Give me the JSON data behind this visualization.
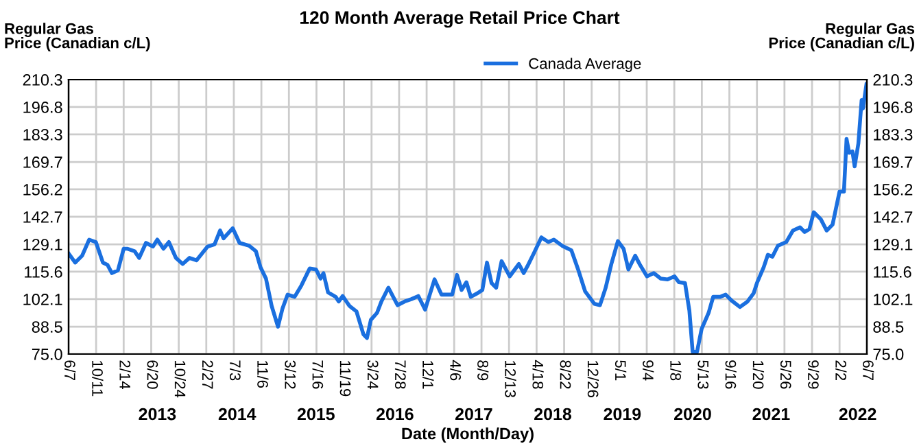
{
  "chart_data": {
    "type": "line",
    "title": "120 Month Average Retail Price Chart",
    "xlabel": "Date (Month/Day)",
    "ylabel": "Regular Gas\nPrice (Canadian c/L)",
    "y2label": "Regular Gas\nPrice (Canadian c/L)",
    "legend": "top",
    "grid": true,
    "xlim": [
      "2012-06-07",
      "2022-06-07"
    ],
    "xticks": [
      {
        "value": "2012-06-07",
        "label": "6/7"
      },
      {
        "value": "2012-10-11",
        "label": "10/11"
      },
      {
        "value": "2013-02-14",
        "label": "2/14"
      },
      {
        "value": "2013-06-20",
        "label": "6/20"
      },
      {
        "value": "2013-10-24",
        "label": "10/24"
      },
      {
        "value": "2014-02-27",
        "label": "2/27"
      },
      {
        "value": "2014-07-03",
        "label": "7/3"
      },
      {
        "value": "2014-11-06",
        "label": "11/6"
      },
      {
        "value": "2015-03-12",
        "label": "3/12"
      },
      {
        "value": "2015-07-16",
        "label": "7/16"
      },
      {
        "value": "2015-11-19",
        "label": "11/19"
      },
      {
        "value": "2016-03-24",
        "label": "3/24"
      },
      {
        "value": "2016-07-28",
        "label": "7/28"
      },
      {
        "value": "2016-12-01",
        "label": "12/1"
      },
      {
        "value": "2017-04-06",
        "label": "4/6"
      },
      {
        "value": "2017-08-09",
        "label": "8/9"
      },
      {
        "value": "2017-12-13",
        "label": "12/13"
      },
      {
        "value": "2018-04-18",
        "label": "4/18"
      },
      {
        "value": "2018-08-22",
        "label": "8/22"
      },
      {
        "value": "2018-12-26",
        "label": "12/26"
      },
      {
        "value": "2019-05-01",
        "label": "5/1"
      },
      {
        "value": "2019-09-04",
        "label": "9/4"
      },
      {
        "value": "2020-01-08",
        "label": "1/8"
      },
      {
        "value": "2020-05-13",
        "label": "5/13"
      },
      {
        "value": "2020-09-16",
        "label": "9/16"
      },
      {
        "value": "2021-01-20",
        "label": "1/20"
      },
      {
        "value": "2021-05-26",
        "label": "5/26"
      },
      {
        "value": "2021-09-29",
        "label": "9/29"
      },
      {
        "value": "2022-02-02",
        "label": "2/2"
      },
      {
        "value": "2022-06-07",
        "label": "6/7"
      }
    ],
    "x2lim": [
      "2012-06-07",
      "2022-06-07"
    ],
    "x2ticks": [
      {
        "value": "2013-07-18",
        "label": "2013"
      },
      {
        "value": "2014-07-18",
        "label": "2014"
      },
      {
        "value": "2015-07-14",
        "label": "2015"
      },
      {
        "value": "2016-07-09",
        "label": "2016"
      },
      {
        "value": "2017-07-05",
        "label": "2017"
      },
      {
        "value": "2018-07-01",
        "label": "2018"
      },
      {
        "value": "2019-05-15",
        "label": "2019"
      },
      {
        "value": "2020-04-01",
        "label": "2020"
      },
      {
        "value": "2021-03-26",
        "label": "2021"
      },
      {
        "value": "2022-04-26",
        "label": "2022"
      }
    ],
    "ylim": [
      75.0,
      210.3
    ],
    "yticks": [
      {
        "value": 75.0,
        "label": "75.0"
      },
      88.5,
      102.1,
      115.6,
      129.1,
      142.7,
      156.2,
      169.7,
      183.3,
      196.8,
      210.3
    ],
    "y2lim": [
      75.0,
      210.3
    ],
    "y2ticks": [
      {
        "value": 75.0,
        "label": "75.0"
      },
      88.5,
      102.1,
      115.6,
      129.1,
      142.7,
      156.2,
      169.7,
      183.3,
      196.8,
      210.3
    ],
    "series": [
      {
        "name": "Canada Average",
        "color": "#1a6fdf",
        "x": [
          "2012-06-07",
          "2012-07-07",
          "2012-08-08",
          "2012-09-09",
          "2012-10-10",
          "2012-11-11",
          "2012-12-02",
          "2012-12-22",
          "2013-01-19",
          "2013-02-14",
          "2013-03-04",
          "2013-04-05",
          "2013-04-26",
          "2013-05-27",
          "2013-06-28",
          "2013-07-18",
          "2013-08-15",
          "2013-09-09",
          "2013-10-11",
          "2013-11-11",
          "2013-12-12",
          "2014-01-13",
          "2014-03-05",
          "2014-04-06",
          "2014-05-01",
          "2014-05-17",
          "2014-06-28",
          "2014-07-29",
          "2014-09-11",
          "2014-10-12",
          "2014-11-02",
          "2014-11-27",
          "2014-12-23",
          "2015-01-21",
          "2015-02-11",
          "2015-03-06",
          "2015-04-07",
          "2015-05-08",
          "2015-06-15",
          "2015-07-14",
          "2015-08-04",
          "2015-08-17",
          "2015-09-07",
          "2015-10-12",
          "2015-10-26",
          "2015-11-13",
          "2015-12-14",
          "2016-01-15",
          "2016-02-16",
          "2016-03-03",
          "2016-03-21",
          "2016-04-18",
          "2016-05-08",
          "2016-06-09",
          "2016-07-21",
          "2016-08-22",
          "2016-09-23",
          "2016-10-24",
          "2016-11-24",
          "2017-01-06",
          "2017-02-07",
          "2017-03-28",
          "2017-04-19",
          "2017-05-10",
          "2017-06-01",
          "2017-06-21",
          "2017-07-22",
          "2017-08-13",
          "2017-09-03",
          "2017-09-24",
          "2017-10-15",
          "2017-11-09",
          "2017-12-16",
          "2018-01-27",
          "2018-02-18",
          "2018-03-08",
          "2018-04-05",
          "2018-05-10",
          "2018-06-11",
          "2018-07-06",
          "2018-08-13",
          "2018-09-24",
          "2018-10-25",
          "2018-11-26",
          "2019-01-07",
          "2019-02-02",
          "2019-02-28",
          "2019-03-26",
          "2019-04-25",
          "2019-05-21",
          "2019-06-12",
          "2019-07-13",
          "2019-08-04",
          "2019-09-05",
          "2019-10-06",
          "2019-11-07",
          "2019-12-08",
          "2020-01-09",
          "2020-01-29",
          "2020-02-26",
          "2020-03-17",
          "2020-04-01",
          "2020-04-21",
          "2020-05-12",
          "2020-06-13",
          "2020-07-04",
          "2020-08-05",
          "2020-08-30",
          "2020-09-26",
          "2020-11-03",
          "2020-12-08",
          "2021-01-05",
          "2021-01-20",
          "2021-02-20",
          "2021-03-11",
          "2021-04-01",
          "2021-04-26",
          "2021-06-03",
          "2021-07-04",
          "2021-08-05",
          "2021-08-26",
          "2021-09-17",
          "2021-10-07",
          "2021-11-08",
          "2021-12-05",
          "2022-01-01",
          "2022-02-02",
          "2022-02-22",
          "2022-03-06",
          "2022-03-18",
          "2022-04-02",
          "2022-04-12",
          "2022-04-29",
          "2022-05-14",
          "2022-05-20",
          "2022-06-05"
        ],
        "values": [
          124.6,
          120.1,
          123.5,
          131.4,
          130.2,
          120.1,
          119.0,
          114.9,
          116.3,
          126.9,
          126.9,
          125.7,
          122.4,
          129.8,
          128.0,
          131.4,
          126.9,
          130.2,
          122.4,
          119.4,
          122.4,
          121.2,
          128.0,
          129.1,
          135.9,
          132.0,
          137.0,
          129.8,
          128.4,
          125.7,
          117.8,
          112.2,
          98.7,
          88.5,
          97.6,
          104.3,
          103.2,
          108.8,
          117.2,
          116.7,
          112.2,
          114.9,
          105.4,
          103.2,
          100.9,
          103.6,
          98.7,
          96.0,
          84.7,
          82.9,
          91.9,
          95.3,
          100.9,
          107.7,
          99.1,
          100.9,
          102.1,
          103.6,
          96.9,
          111.8,
          104.3,
          104.3,
          114.0,
          106.6,
          110.4,
          103.2,
          105.0,
          106.6,
          120.1,
          110.0,
          107.7,
          120.8,
          113.3,
          119.4,
          114.9,
          118.5,
          124.6,
          132.5,
          130.2,
          131.4,
          128.4,
          126.2,
          116.7,
          105.9,
          99.8,
          99.1,
          107.7,
          119.4,
          130.7,
          126.9,
          116.7,
          123.5,
          119.0,
          113.3,
          114.9,
          112.2,
          111.8,
          113.3,
          110.4,
          110.0,
          96.4,
          76.1,
          76.1,
          87.4,
          95.3,
          103.2,
          103.2,
          104.3,
          101.4,
          98.2,
          100.9,
          105.0,
          110.0,
          117.8,
          123.9,
          123.0,
          128.4,
          130.2,
          135.9,
          137.5,
          135.2,
          136.6,
          144.9,
          141.5,
          135.9,
          138.8,
          155.1,
          155.1,
          181.0,
          174.2,
          174.9,
          167.5,
          178.7,
          200.2,
          196.1,
          208.0
        ]
      }
    ]
  }
}
